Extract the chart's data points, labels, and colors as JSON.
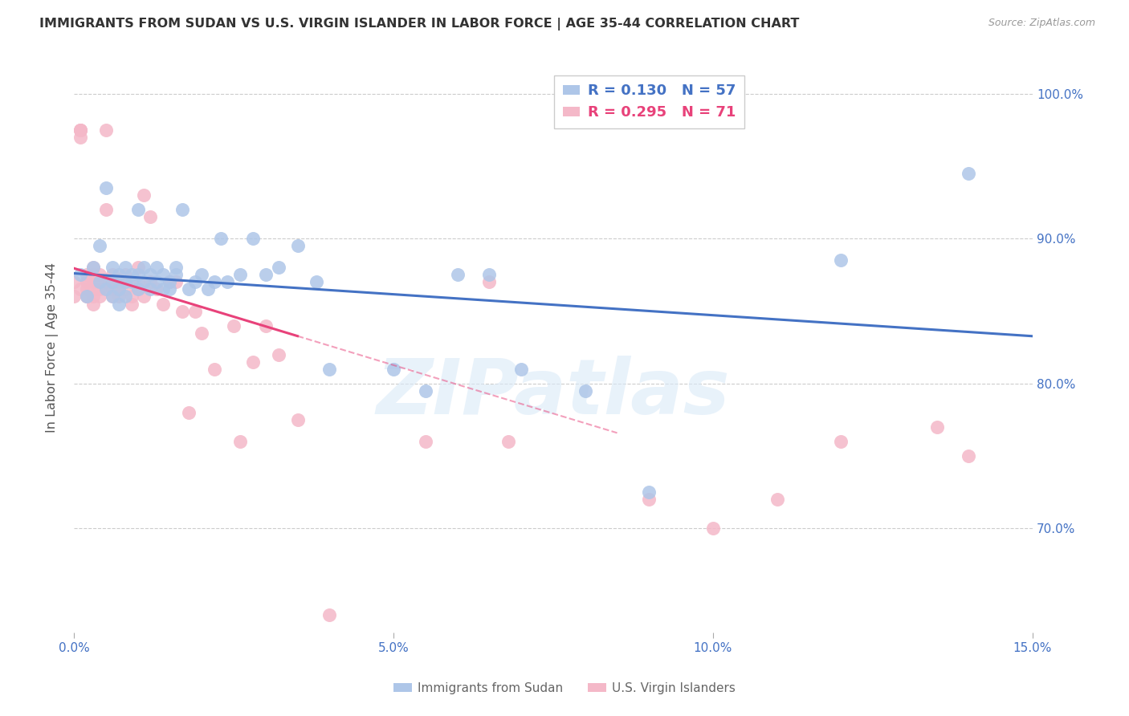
{
  "title": "IMMIGRANTS FROM SUDAN VS U.S. VIRGIN ISLANDER IN LABOR FORCE | AGE 35-44 CORRELATION CHART",
  "source": "Source: ZipAtlas.com",
  "ylabel": "In Labor Force | Age 35-44",
  "xmin": 0.0,
  "xmax": 0.15,
  "ymin": 0.628,
  "ymax": 1.022,
  "r_blue": 0.13,
  "n_blue": 57,
  "r_pink": 0.295,
  "n_pink": 71,
  "blue_color": "#aec6e8",
  "pink_color": "#f4b8c8",
  "trendline_blue": "#4472c4",
  "trendline_pink": "#e8427a",
  "watermark_text": "ZIPatlas",
  "ytick_vals": [
    0.7,
    0.8,
    0.9,
    1.0
  ],
  "ytick_labels": [
    "70.0%",
    "80.0%",
    "90.0%",
    "100.0%"
  ],
  "xtick_vals": [
    0.0,
    0.05,
    0.1,
    0.15
  ],
  "xtick_labels": [
    "0.0%",
    "5.0%",
    "10.0%",
    "15.0%"
  ],
  "blue_scatter_x": [
    0.001,
    0.002,
    0.003,
    0.004,
    0.004,
    0.005,
    0.005,
    0.006,
    0.006,
    0.006,
    0.007,
    0.007,
    0.007,
    0.008,
    0.008,
    0.008,
    0.009,
    0.009,
    0.01,
    0.01,
    0.01,
    0.011,
    0.011,
    0.012,
    0.012,
    0.013,
    0.013,
    0.014,
    0.014,
    0.015,
    0.015,
    0.016,
    0.016,
    0.017,
    0.018,
    0.019,
    0.02,
    0.021,
    0.022,
    0.023,
    0.024,
    0.026,
    0.028,
    0.03,
    0.032,
    0.035,
    0.038,
    0.04,
    0.05,
    0.055,
    0.06,
    0.065,
    0.07,
    0.08,
    0.09,
    0.12,
    0.14
  ],
  "blue_scatter_y": [
    0.875,
    0.86,
    0.88,
    0.87,
    0.895,
    0.865,
    0.935,
    0.87,
    0.88,
    0.86,
    0.875,
    0.865,
    0.855,
    0.87,
    0.88,
    0.86,
    0.875,
    0.87,
    0.865,
    0.875,
    0.92,
    0.87,
    0.88,
    0.865,
    0.875,
    0.87,
    0.88,
    0.865,
    0.875,
    0.87,
    0.865,
    0.88,
    0.875,
    0.92,
    0.865,
    0.87,
    0.875,
    0.865,
    0.87,
    0.9,
    0.87,
    0.875,
    0.9,
    0.875,
    0.88,
    0.895,
    0.87,
    0.81,
    0.81,
    0.795,
    0.875,
    0.875,
    0.81,
    0.795,
    0.725,
    0.885,
    0.945
  ],
  "pink_scatter_x": [
    0.0,
    0.0,
    0.001,
    0.001,
    0.001,
    0.001,
    0.001,
    0.002,
    0.002,
    0.002,
    0.002,
    0.002,
    0.002,
    0.003,
    0.003,
    0.003,
    0.003,
    0.003,
    0.003,
    0.004,
    0.004,
    0.004,
    0.004,
    0.005,
    0.005,
    0.005,
    0.005,
    0.006,
    0.006,
    0.006,
    0.006,
    0.007,
    0.007,
    0.007,
    0.008,
    0.008,
    0.008,
    0.009,
    0.009,
    0.01,
    0.01,
    0.01,
    0.011,
    0.011,
    0.012,
    0.012,
    0.013,
    0.014,
    0.015,
    0.016,
    0.017,
    0.018,
    0.019,
    0.02,
    0.022,
    0.025,
    0.026,
    0.028,
    0.03,
    0.032,
    0.035,
    0.04,
    0.055,
    0.065,
    0.068,
    0.09,
    0.1,
    0.11,
    0.12,
    0.135,
    0.14
  ],
  "pink_scatter_y": [
    0.87,
    0.86,
    0.975,
    0.975,
    0.97,
    0.975,
    0.865,
    0.87,
    0.86,
    0.875,
    0.87,
    0.865,
    0.86,
    0.87,
    0.88,
    0.86,
    0.865,
    0.855,
    0.875,
    0.87,
    0.875,
    0.86,
    0.865,
    0.87,
    0.975,
    0.92,
    0.865,
    0.87,
    0.875,
    0.86,
    0.865,
    0.87,
    0.865,
    0.86,
    0.875,
    0.87,
    0.865,
    0.86,
    0.855,
    0.88,
    0.87,
    0.865,
    0.93,
    0.86,
    0.87,
    0.915,
    0.865,
    0.855,
    0.87,
    0.87,
    0.85,
    0.78,
    0.85,
    0.835,
    0.81,
    0.84,
    0.76,
    0.815,
    0.84,
    0.82,
    0.775,
    0.64,
    0.76,
    0.87,
    0.76,
    0.72,
    0.7,
    0.72,
    0.76,
    0.77,
    0.75
  ]
}
